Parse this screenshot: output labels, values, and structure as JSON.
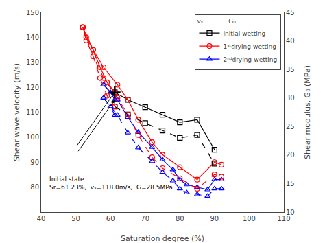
{
  "chart_data": {
    "type": "line",
    "xlabel": "Saturation degree (%)",
    "ylabel": "Shear wave velocity (m/s)",
    "y2label": "Shear modulus, G₀ (MPa)",
    "xlim": [
      40,
      110
    ],
    "xticks": [
      40,
      50,
      60,
      70,
      80,
      90,
      100,
      110
    ],
    "ylim": [
      70,
      150
    ],
    "yticks": [
      80,
      90,
      100,
      110,
      120,
      130,
      140,
      150
    ],
    "y2lim": [
      10,
      45
    ],
    "y2ticks": [
      10,
      15,
      20,
      25,
      30,
      35,
      40,
      45
    ],
    "grid": false,
    "legend": "upper right",
    "legend_title": "vₛ             G₀",
    "series": [
      {
        "name": "Initial wetting",
        "color": "black",
        "marker": "square",
        "line_style": "solid",
        "x": [
          61.23,
          65,
          70,
          75,
          80,
          85,
          90
        ],
        "values": [
          118.0,
          115,
          112,
          109,
          106,
          107,
          95
        ]
      },
      {
        "name": "Initial wetting",
        "color": "black",
        "marker": "square",
        "line_style": "dash",
        "axis": "y2",
        "x": [
          61.23,
          65,
          70,
          75,
          80,
          85,
          90
        ],
        "values": [
          28.5,
          27.1,
          25.6,
          24.3,
          23.0,
          23.5,
          18.5
        ]
      },
      {
        "name": "1ˢᵗdrying-wetting",
        "color": "red",
        "marker": "circle",
        "line_style": "solid",
        "x": [
          61.23,
          59,
          57,
          55,
          53,
          52
        ],
        "values": [
          118.0,
          122,
          128,
          135,
          140,
          144
        ]
      },
      {
        "name": "1ˢᵗdrying-wetting",
        "color": "red",
        "marker": "circle",
        "line_style": "dash",
        "axis": "y2",
        "x": [
          61.23,
          59,
          57,
          55,
          53,
          52
        ],
        "values": [
          28.5,
          30.4,
          33.5,
          37.3,
          40.1,
          42.4
        ]
      },
      {
        "name": "1ˢᵗdrying-wetting",
        "color": "red",
        "marker": "circle",
        "line_style": "solid",
        "x": [
          52,
          55,
          58,
          62,
          65,
          68,
          72,
          75,
          80,
          85,
          90,
          92
        ],
        "values": [
          144,
          135,
          128,
          121,
          115,
          107,
          98,
          93,
          88,
          83,
          90,
          89
        ]
      },
      {
        "name": "1ˢᵗdrying-wetting",
        "color": "red",
        "marker": "circle",
        "line_style": "dash",
        "axis": "y2",
        "x": [
          52,
          55,
          58,
          62,
          65,
          68,
          72,
          75,
          80,
          85,
          90,
          92
        ],
        "values": [
          42.4,
          37.3,
          33.5,
          30.0,
          27.1,
          23.5,
          19.6,
          17.7,
          15.9,
          14.1,
          16.6,
          16.2
        ]
      },
      {
        "name": "2ⁿᵈdrying-wetting",
        "color": "blue",
        "marker": "triangle",
        "line_style": "solid",
        "x": [
          61.23,
          60,
          58
        ],
        "values": [
          115,
          118,
          121
        ]
      },
      {
        "name": "2ⁿᵈdrying-wetting",
        "color": "blue",
        "marker": "triangle",
        "line_style": "dash",
        "axis": "y2",
        "x": [
          61.23,
          60,
          58
        ],
        "values": [
          27.0,
          28.5,
          30.0
        ]
      },
      {
        "name": "2ⁿᵈdrying-wetting",
        "color": "blue",
        "marker": "triangle",
        "line_style": "solid",
        "x": [
          58,
          62,
          65,
          68,
          72,
          75,
          78,
          80,
          82,
          85,
          88,
          90,
          92
        ],
        "values": [
          121,
          115,
          108,
          102,
          96,
          91,
          87,
          83,
          81,
          80,
          79,
          83,
          83
        ]
      },
      {
        "name": "2ⁿᵈdrying-wetting",
        "color": "blue",
        "marker": "triangle",
        "line_style": "dash",
        "axis": "y2",
        "x": [
          58,
          62,
          65,
          68,
          72,
          75,
          78,
          80,
          82,
          85,
          88,
          90,
          92
        ],
        "values": [
          30.0,
          27.0,
          23.9,
          21.3,
          18.9,
          17.0,
          15.5,
          14.1,
          13.4,
          13.1,
          12.8,
          14.1,
          14.1
        ]
      },
      {
        "type": "scatter",
        "color": "black",
        "marker": "plus",
        "x": [
          61.23
        ],
        "values": [
          118.0
        ]
      }
    ],
    "annotations": [
      {
        "text": "Initial state\nSr=61.23%,  vₛ=118.0m/s,  G=28.5MPa",
        "x": 42,
        "y": 78,
        "arrows": [
          {
            "x": 61.23,
            "y": 118.0,
            "ax": 50,
            "ay": 96
          },
          {
            "x": 61.23,
            "y": 115.0,
            "ax": 50.5,
            "ay": 94
          }
        ]
      }
    ]
  }
}
